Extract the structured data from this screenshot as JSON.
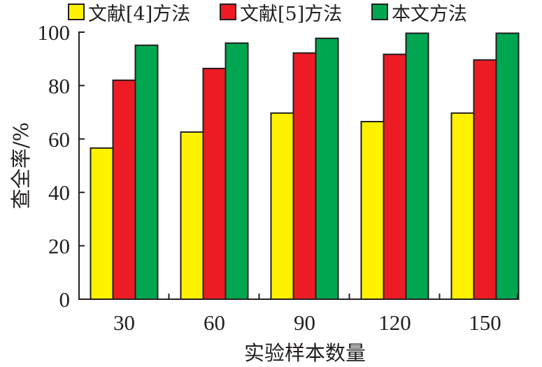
{
  "chart_data": {
    "type": "bar",
    "title": "",
    "xlabel": "实验样本数量",
    "ylabel": "查全率/%",
    "categories": [
      "30",
      "60",
      "90",
      "120",
      "150"
    ],
    "yticks": [
      "0",
      "20",
      "40",
      "60",
      "80",
      "100"
    ],
    "ylim": [
      0,
      100
    ],
    "grid": false,
    "legend_position": "top",
    "series": [
      {
        "name": "文献[4]方法",
        "color": "#fff200",
        "values": [
          56.6,
          62.6,
          69.7,
          66.5,
          69.7
        ]
      },
      {
        "name": "文献[5]方法",
        "color": "#ed1c24",
        "values": [
          82.0,
          86.4,
          92.2,
          91.7,
          89.6
        ]
      },
      {
        "name": "本文方法",
        "color": "#00a650",
        "values": [
          95.1,
          95.9,
          97.7,
          99.6,
          99.6
        ]
      }
    ]
  }
}
